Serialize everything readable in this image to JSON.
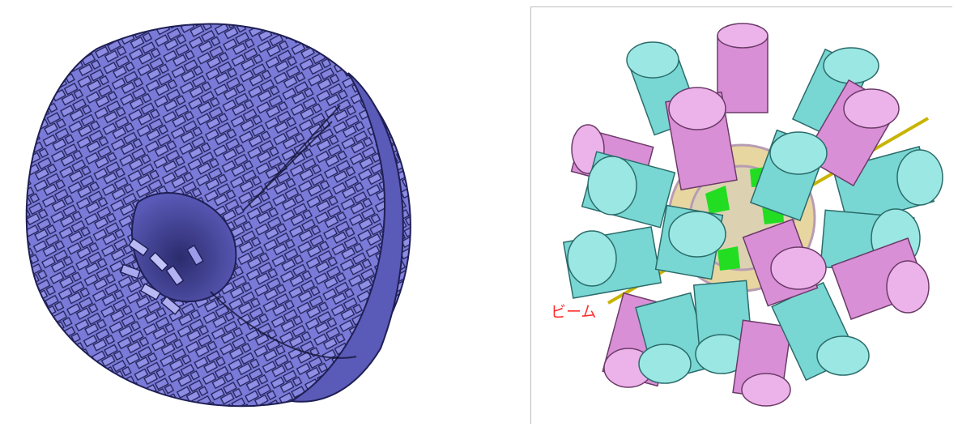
{
  "figures": {
    "left": {
      "subject": "detector-crystal-array-render",
      "colors": {
        "face": "#7c7cd6",
        "edge": "#1f1f55",
        "highlight": "#b9b9f4",
        "dark": "#3b3b8a"
      }
    },
    "right": {
      "subject": "germanium-detector-cluster-render",
      "colors": {
        "teal": "#78d6d3",
        "teal_dark": "#3f8f8c",
        "pink": "#d98fd6",
        "pink_dark": "#8a4f86",
        "green": "#22dd22",
        "tan": "#e8d6a0",
        "blue": "#1f3fd8",
        "beam": "#c8b400"
      }
    }
  },
  "labels": {
    "beam": "ビーム"
  }
}
